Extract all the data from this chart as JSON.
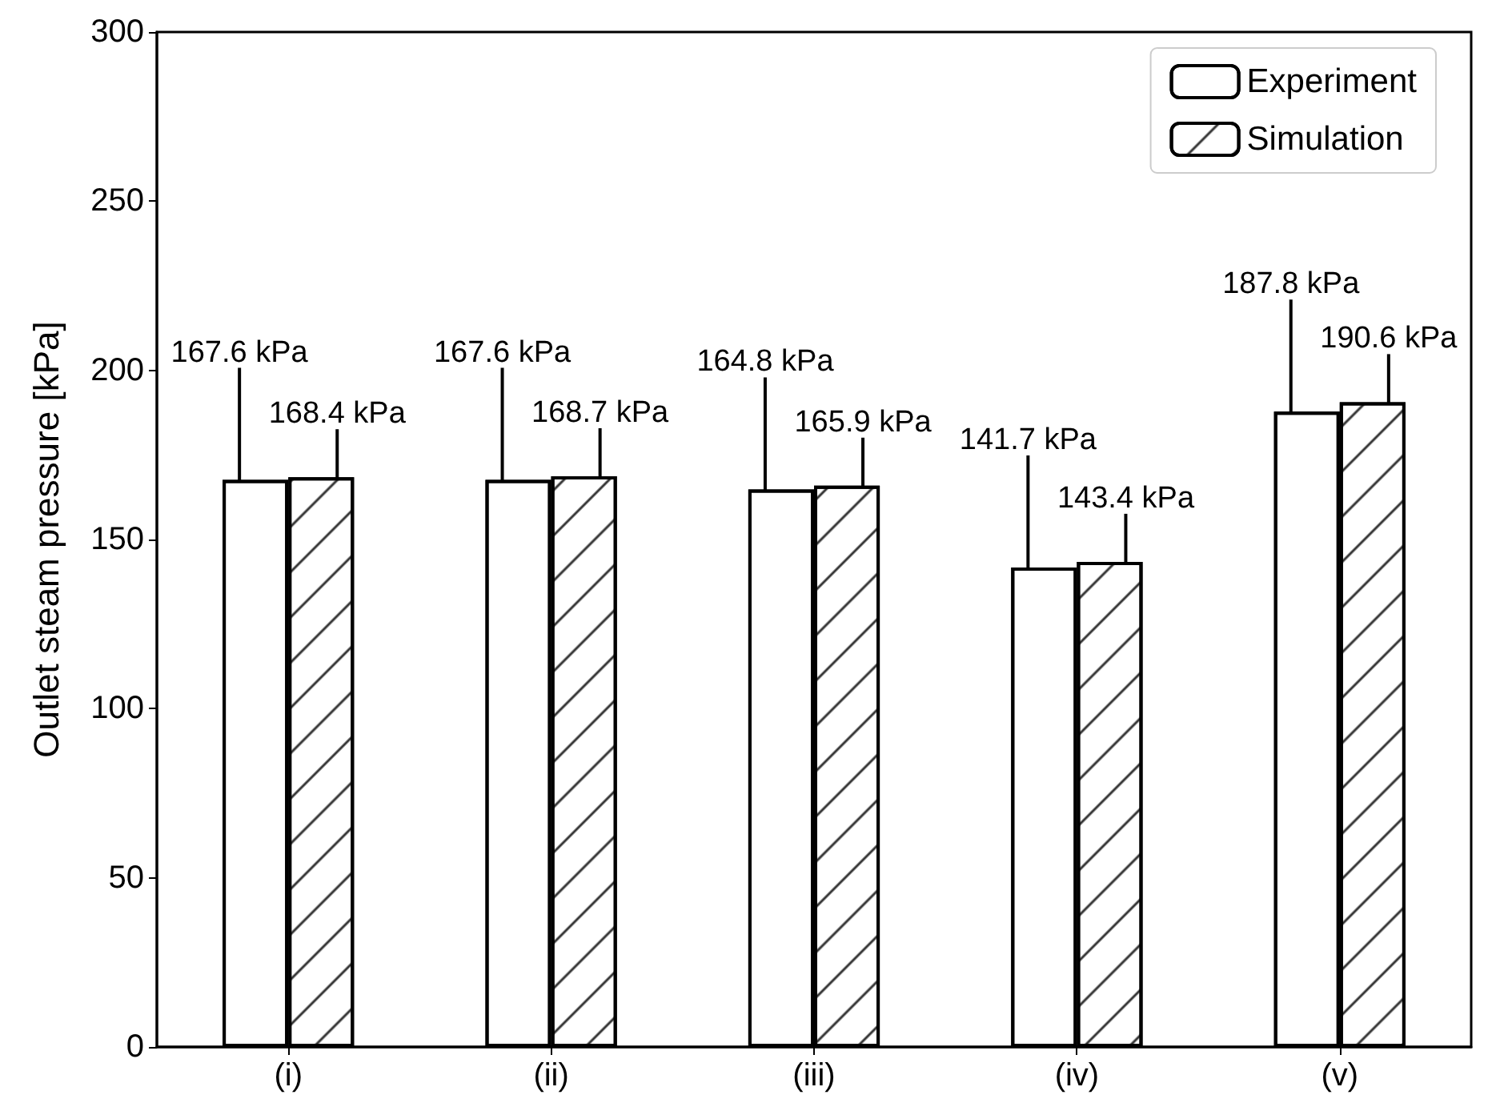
{
  "chart_data": {
    "type": "bar",
    "ylabel": "Outlet steam pressure [kPa]",
    "categories": [
      "(i)",
      "(ii)",
      "(iii)",
      "(iv)",
      "(v)"
    ],
    "series": [
      {
        "name": "Experiment",
        "color": "#ffffff",
        "values": [
          167.6,
          167.6,
          164.8,
          141.7,
          187.8
        ],
        "value_labels": [
          "167.6 kPa",
          "167.6 kPa",
          "164.8 kPa",
          "141.7 kPa",
          "187.8 kPa"
        ]
      },
      {
        "name": "Simulation",
        "color": "#ffffff",
        "values": [
          168.4,
          168.7,
          165.9,
          143.4,
          190.6
        ],
        "value_labels": [
          "168.4 kPa",
          "168.7 kPa",
          "165.9 kPa",
          "143.4 kPa",
          "190.6 kPa"
        ]
      }
    ],
    "ylim": [
      0,
      300
    ],
    "yticks": [
      0,
      50,
      100,
      150,
      200,
      250,
      300
    ],
    "grid": false,
    "legend": "top right"
  }
}
